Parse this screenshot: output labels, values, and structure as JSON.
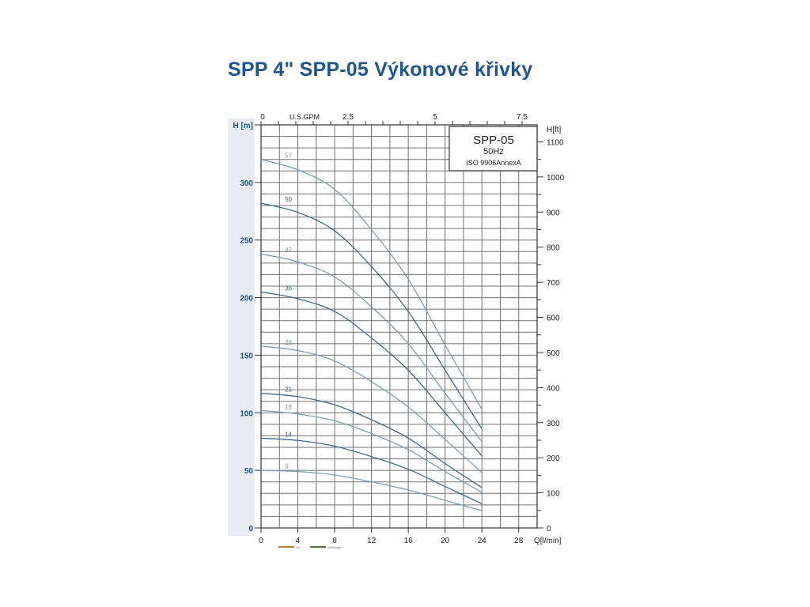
{
  "title": "SPP 4\" SPP-05 Výkonové křivky",
  "chart_data": {
    "type": "line",
    "xlabel": "Q[l/min]",
    "ylabel": "H [m]",
    "ylabel_right": "H[ft]",
    "xlabel_top": "U.S.GPM",
    "xlim": [
      0,
      30
    ],
    "ylim": [
      0,
      350
    ],
    "x_ticks": [
      "0",
      "4",
      "8",
      "12",
      "16",
      "20",
      "24",
      "28"
    ],
    "y_ticks": [
      "0",
      "50",
      "100",
      "150",
      "200",
      "250",
      "300"
    ],
    "right_ticks": [
      "0",
      "100",
      "200",
      "300",
      "400",
      "500",
      "600",
      "700",
      "800",
      "900",
      "1000",
      "1100"
    ],
    "top_ticks": [
      "0",
      "2.5",
      "5",
      "7.5"
    ],
    "grid": true,
    "info_box": {
      "model": "SPP-05",
      "freq": "50Hz",
      "standard": "ISO 9906AnnexA"
    },
    "legend": [
      {
        "label": "η%",
        "color": "#b08040"
      },
      {
        "label": "kW/Stage",
        "color": "#4a7a3a"
      }
    ],
    "x": [
      0,
      4,
      8,
      12,
      16,
      20,
      24
    ],
    "series": [
      {
        "name": "57",
        "values": [
          320,
          311,
          294,
          259,
          216,
          159,
          103
        ]
      },
      {
        "name": "50",
        "values": [
          282,
          274,
          258,
          227,
          188,
          137,
          86
        ]
      },
      {
        "name": "42",
        "values": [
          238,
          231,
          218,
          192,
          160,
          117,
          75
        ]
      },
      {
        "name": "36",
        "values": [
          205,
          199,
          188,
          165,
          137,
          100,
          62.5
        ]
      },
      {
        "name": "28",
        "values": [
          158,
          154,
          145,
          127,
          105,
          77,
          48
        ]
      },
      {
        "name": "21",
        "values": [
          117,
          114,
          107,
          94,
          78,
          56,
          35
        ]
      },
      {
        "name": "18",
        "values": [
          102,
          99,
          93,
          82,
          68,
          49,
          31
        ]
      },
      {
        "name": "14",
        "values": [
          78,
          76,
          71,
          62,
          51,
          36,
          21
        ]
      },
      {
        "name": "9",
        "values": [
          50,
          49,
          46,
          40,
          33,
          24,
          15
        ]
      }
    ],
    "colors": {
      "curve_light": "#7a9fb8",
      "curve_dark": "#3d6a8a",
      "axis_blue": "#1d5594",
      "grid": "#707070"
    }
  }
}
